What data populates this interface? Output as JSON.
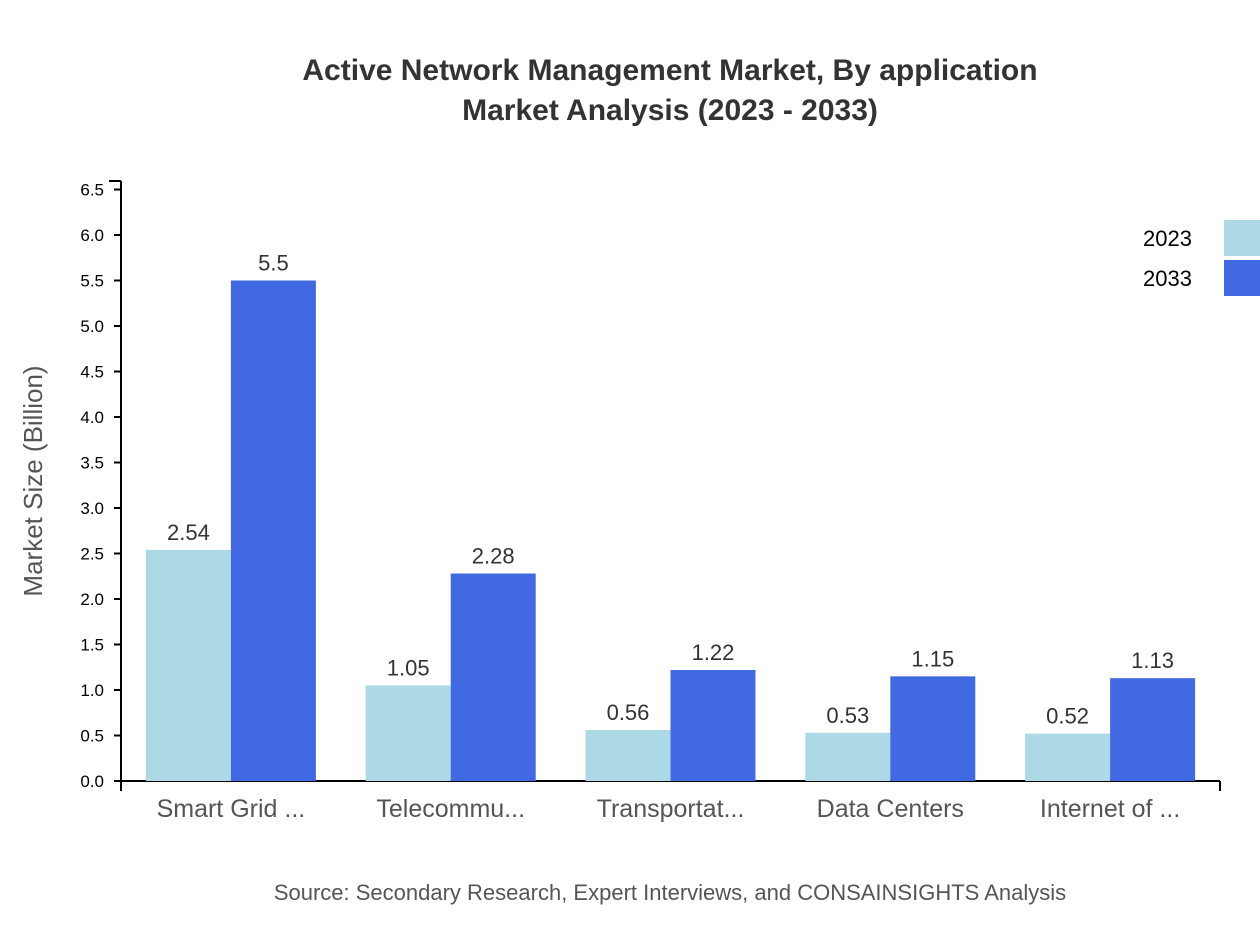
{
  "chart_data": {
    "type": "bar",
    "title": "Active Network Management Market, By application",
    "subtitle": "Market Analysis (2023 - 2033)",
    "ylabel": "Market Size (Billion)",
    "xlabel": "",
    "ylim": [
      0,
      6.5
    ],
    "yticks": [
      "0.0",
      "0.5",
      "1.0",
      "1.5",
      "2.0",
      "2.5",
      "3.0",
      "3.5",
      "4.0",
      "4.5",
      "5.0",
      "5.5",
      "6.0",
      "6.5"
    ],
    "categories": [
      "Smart Grid ...",
      "Telecommu...",
      "Transportat...",
      "Data Centers",
      "Internet of ..."
    ],
    "series": [
      {
        "name": "2023",
        "color": "#add8e6",
        "values": [
          2.54,
          1.05,
          0.56,
          0.53,
          0.52
        ]
      },
      {
        "name": "2033",
        "color": "#4169e1",
        "values": [
          5.5,
          2.28,
          1.22,
          1.15,
          1.13
        ]
      }
    ],
    "legend_position": "top-right",
    "grid": false,
    "source": "Source: Secondary Research, Expert Interviews, and CONSAINSIGHTS Analysis"
  }
}
